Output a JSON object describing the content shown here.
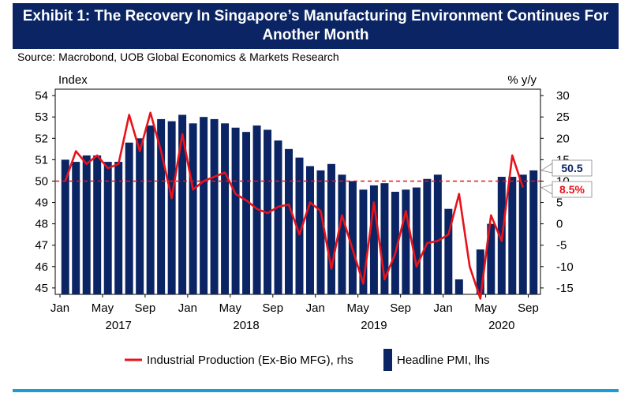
{
  "header": {
    "title": "Exhibit 1: The Recovery In Singapore’s Manufacturing Environment Continues For Another Month",
    "source": "Source: Macrobond, UOB Global Economics & Markets Research"
  },
  "colors": {
    "header_bg": "#0b2463",
    "bar": "#0b2463",
    "line": "#e8121a",
    "reference_line": "#e8121a",
    "footer_rule": "#1e9ad6"
  },
  "chart_data": {
    "type": "bar+line",
    "left_axis": {
      "label": "Index",
      "ylim": [
        44.7,
        54.3
      ],
      "ticks": [
        45,
        46,
        47,
        48,
        49,
        50,
        51,
        52,
        53,
        54
      ]
    },
    "right_axis": {
      "label": "% y/y",
      "ylim": [
        -16.5,
        31.5
      ],
      "ticks": [
        -15,
        -10,
        -5,
        0,
        5,
        10,
        15,
        20,
        25,
        30
      ]
    },
    "x_ticks": [
      {
        "label": "Jan",
        "index": 0
      },
      {
        "label": "May",
        "index": 4
      },
      {
        "label": "Sep",
        "index": 8
      },
      {
        "label": "Jan",
        "index": 12
      },
      {
        "label": "May",
        "index": 16
      },
      {
        "label": "Sep",
        "index": 20
      },
      {
        "label": "Jan",
        "index": 24
      },
      {
        "label": "May",
        "index": 28
      },
      {
        "label": "Sep",
        "index": 32
      },
      {
        "label": "Jan",
        "index": 36
      },
      {
        "label": "May",
        "index": 40
      },
      {
        "label": "Sep",
        "index": 44
      }
    ],
    "year_labels": [
      {
        "label": "2017",
        "center_index": 5.5
      },
      {
        "label": "2018",
        "center_index": 17.5
      },
      {
        "label": "2019",
        "center_index": 29.5
      },
      {
        "label": "2020",
        "center_index": 41.5
      }
    ],
    "grid": false,
    "legend_position": "bottom",
    "reference_line": {
      "axis": "left",
      "value": 50,
      "style": "dashed"
    },
    "series": [
      {
        "name": "Headline PMI, lhs",
        "type": "bar",
        "axis": "left",
        "values": [
          51.0,
          50.9,
          51.2,
          51.2,
          50.9,
          50.9,
          51.8,
          52.0,
          52.6,
          52.9,
          52.8,
          53.1,
          52.7,
          53.0,
          52.9,
          52.7,
          52.5,
          52.3,
          52.6,
          52.4,
          51.9,
          51.5,
          51.1,
          50.7,
          50.5,
          50.8,
          50.3,
          50.0,
          49.6,
          49.8,
          49.9,
          49.5,
          49.6,
          49.7,
          50.1,
          50.3,
          48.7,
          45.4,
          44.7,
          46.8,
          48.0,
          50.2,
          50.2,
          50.3,
          50.5
        ]
      },
      {
        "name": "Industrial Production (Ex-Bio MFG), rhs",
        "type": "line",
        "axis": "right",
        "values": [
          10,
          17,
          14,
          16,
          13,
          14,
          25.5,
          17,
          26,
          17,
          6,
          21,
          8,
          10,
          11,
          12,
          7,
          5.5,
          3.5,
          2.5,
          4,
          4.5,
          -2.5,
          5,
          3,
          -10.5,
          2,
          -6,
          -14,
          5,
          -13,
          -7,
          3,
          -10,
          -4.5,
          -4,
          -2.5,
          7,
          -10,
          -17.5,
          2,
          -4,
          16,
          8.5
        ]
      }
    ],
    "callouts": [
      {
        "text": "50.5",
        "series": "Headline PMI, lhs",
        "color": "#0b2463"
      },
      {
        "text": "8.5%",
        "series": "Industrial Production (Ex-Bio MFG), rhs",
        "color": "#e8121a"
      }
    ]
  },
  "legend": {
    "line_label": "Industrial Production (Ex-Bio MFG), rhs",
    "bar_label": "Headline PMI, lhs"
  }
}
